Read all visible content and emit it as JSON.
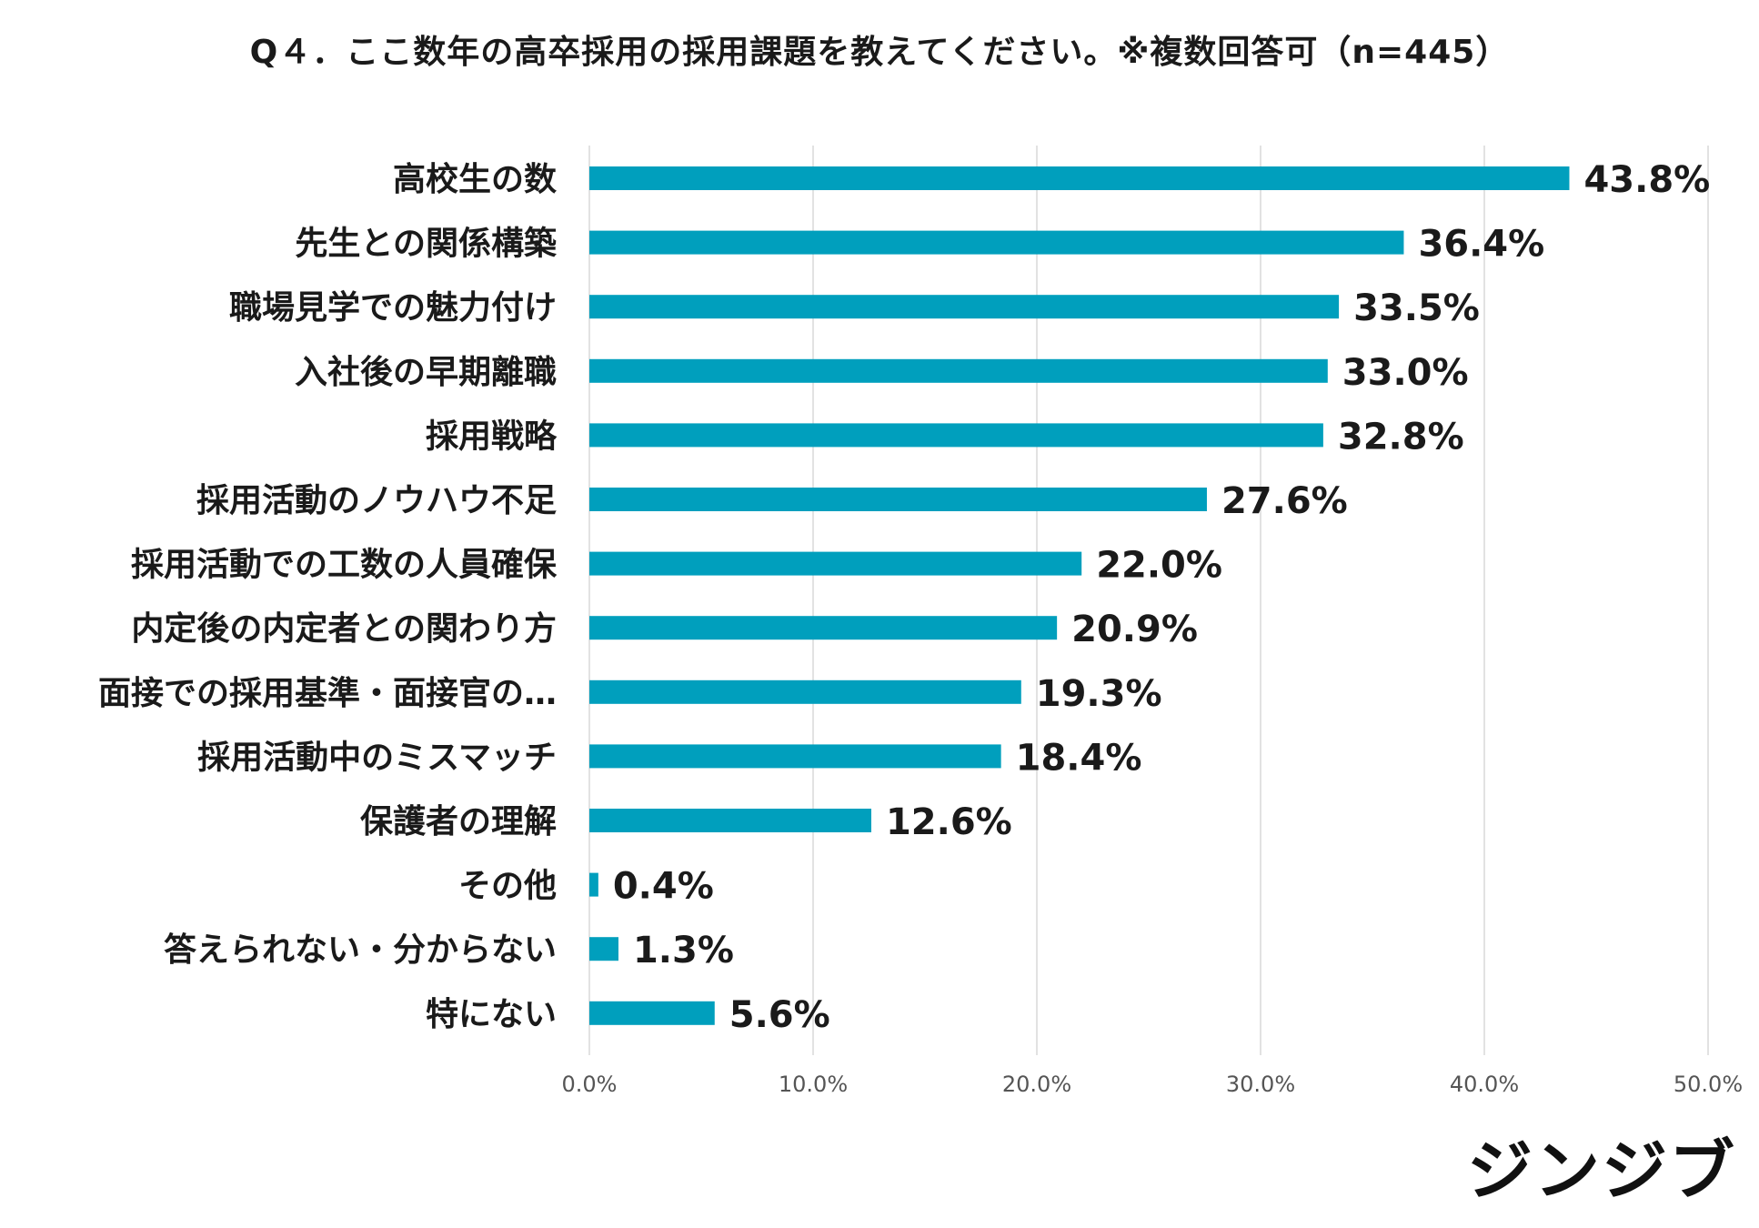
{
  "chart_data": {
    "type": "bar",
    "orientation": "horizontal",
    "title": "Q４．ここ数年の高卒採用の採用課題を教えてください。※複数回答可（n=445）",
    "categories": [
      "高校生の数",
      "先生との関係構築",
      "職場見学での魅力付け",
      "入社後の早期離職",
      "採用戦略",
      "採用活動のノウハウ不足",
      "採用活動での工数の人員確保",
      "内定後の内定者との関わり方",
      "面接での採用基準・面接官の…",
      "採用活動中のミスマッチ",
      "保護者の理解",
      "その他",
      "答えられない・分からない",
      "特にない"
    ],
    "values": [
      43.8,
      36.4,
      33.5,
      33.0,
      32.8,
      27.6,
      22.0,
      20.9,
      19.3,
      18.4,
      12.6,
      0.4,
      1.3,
      5.6
    ],
    "value_labels": [
      "43.8%",
      "36.4%",
      "33.5%",
      "33.0%",
      "32.8%",
      "27.6%",
      "22.0%",
      "20.9%",
      "19.3%",
      "18.4%",
      "12.6%",
      "0.4%",
      "1.3%",
      "5.6%"
    ],
    "xlim": [
      0,
      50
    ],
    "xticks": [
      "0.0%",
      "10.0%",
      "20.0%",
      "30.0%",
      "40.0%",
      "50.0%"
    ],
    "grid": true,
    "legend": "none",
    "xlabel": "",
    "ylabel": ""
  },
  "colors": {
    "bar": "#009fbd",
    "grid": "#d9d9d9",
    "text": "#1a1a1a",
    "tick": "#555555"
  },
  "logo": {
    "text": "ジンジブ"
  }
}
